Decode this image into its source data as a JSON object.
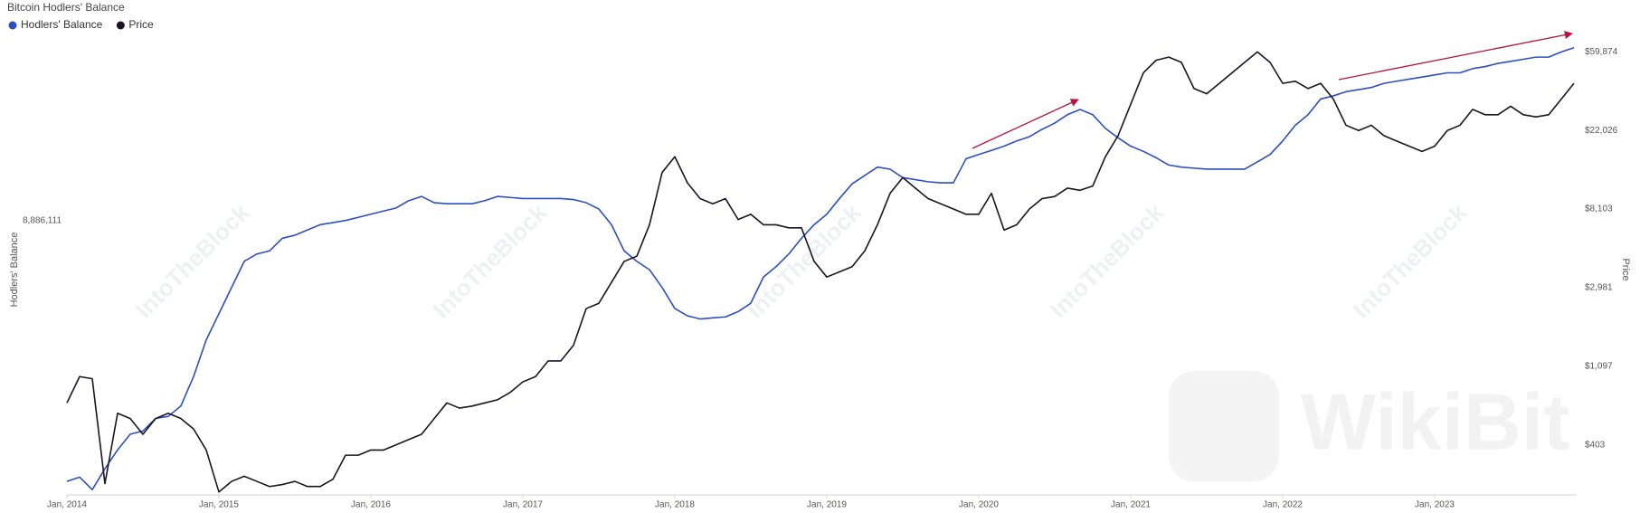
{
  "chart_data": {
    "type": "line",
    "title": "Bitcoin Hodlers' Balance",
    "y_label": "Hodlers' Balance",
    "y2_label": "Price",
    "watermarks": [
      "IntoTheBlock",
      "WikiBit"
    ],
    "x": [
      "2014-01",
      "2014-02",
      "2014-03",
      "2014-04",
      "2014-05",
      "2014-06",
      "2014-07",
      "2014-08",
      "2014-09",
      "2014-10",
      "2014-11",
      "2014-12",
      "2015-01",
      "2015-02",
      "2015-03",
      "2015-04",
      "2015-05",
      "2015-06",
      "2015-07",
      "2015-08",
      "2015-09",
      "2015-10",
      "2015-11",
      "2015-12",
      "2016-01",
      "2016-02",
      "2016-03",
      "2016-04",
      "2016-05",
      "2016-06",
      "2016-07",
      "2016-08",
      "2016-09",
      "2016-10",
      "2016-11",
      "2016-12",
      "2017-01",
      "2017-02",
      "2017-03",
      "2017-04",
      "2017-05",
      "2017-06",
      "2017-07",
      "2017-08",
      "2017-09",
      "2017-10",
      "2017-11",
      "2017-12",
      "2018-01",
      "2018-02",
      "2018-03",
      "2018-04",
      "2018-05",
      "2018-06",
      "2018-07",
      "2018-08",
      "2018-09",
      "2018-10",
      "2018-11",
      "2018-12",
      "2019-01",
      "2019-02",
      "2019-03",
      "2019-04",
      "2019-05",
      "2019-06",
      "2019-07",
      "2019-08",
      "2019-09",
      "2019-10",
      "2019-11",
      "2019-12",
      "2020-01",
      "2020-02",
      "2020-03",
      "2020-04",
      "2020-05",
      "2020-06",
      "2020-07",
      "2020-08",
      "2020-09",
      "2020-10",
      "2020-11",
      "2020-12",
      "2021-01",
      "2021-02",
      "2021-03",
      "2021-04",
      "2021-05",
      "2021-06",
      "2021-07",
      "2021-08",
      "2021-09",
      "2021-10",
      "2021-11",
      "2021-12",
      "2022-01",
      "2022-02",
      "2022-03",
      "2022-04",
      "2022-05",
      "2022-06",
      "2022-07",
      "2022-08",
      "2022-09",
      "2022-10",
      "2022-11",
      "2022-12",
      "2023-01",
      "2023-02",
      "2023-03",
      "2023-04",
      "2023-05",
      "2023-06",
      "2023-07",
      "2023-08",
      "2023-09",
      "2023-10",
      "2023-11",
      "2023-12"
    ],
    "xlim": [
      "2014-01",
      "2023-12"
    ],
    "xticks": [
      {
        "value": "2014-01",
        "label": "Jan, 2014"
      },
      {
        "value": "2015-01",
        "label": "Jan, 2015"
      },
      {
        "value": "2016-01",
        "label": "Jan, 2016"
      },
      {
        "value": "2017-01",
        "label": "Jan, 2017"
      },
      {
        "value": "2018-01",
        "label": "Jan, 2018"
      },
      {
        "value": "2019-01",
        "label": "Jan, 2019"
      },
      {
        "value": "2020-01",
        "label": "Jan, 2020"
      },
      {
        "value": "2021-01",
        "label": "Jan, 2021"
      },
      {
        "value": "2022-01",
        "label": "Jan, 2022"
      },
      {
        "value": "2023-01",
        "label": "Jan, 2023"
      }
    ],
    "ylim": [
      4000000,
      12170754
    ],
    "yticks": [
      {
        "value": 8886111,
        "label": "8,886,111"
      }
    ],
    "y2lim": [
      213,
      73130
    ],
    "y2_log": true,
    "y2ticks": [
      {
        "value": 403,
        "label": "$403"
      },
      {
        "value": 1097,
        "label": "$1,097"
      },
      {
        "value": 2981,
        "label": "$2,981"
      },
      {
        "value": 8103,
        "label": "$8,103"
      },
      {
        "value": 22026,
        "label": "$22,026"
      },
      {
        "value": 59874,
        "label": "$59,874"
      }
    ],
    "grid": false,
    "legend": "top-left",
    "series": [
      {
        "name": "Hodlers' Balance",
        "color": "#2d4fbf",
        "values": [
          4242000,
          4317000,
          4093000,
          4466000,
          4802000,
          5082000,
          5138000,
          5362000,
          5399000,
          5586000,
          6108000,
          6761000,
          7227000,
          7694000,
          8160000,
          8291000,
          8347000,
          8570000,
          8626000,
          8720000,
          8813000,
          8850000,
          8888000,
          8944000,
          9000000,
          9056000,
          9111000,
          9242000,
          9317000,
          9205000,
          9186000,
          9186000,
          9186000,
          9242000,
          9317000,
          9298000,
          9279000,
          9279000,
          9279000,
          9279000,
          9261000,
          9205000,
          9093000,
          8813000,
          8347000,
          8160000,
          8011000,
          7694000,
          7321000,
          7190000,
          7134000,
          7153000,
          7171000,
          7265000,
          7414000,
          7880000,
          8067000,
          8291000,
          8570000,
          8813000,
          9000000,
          9279000,
          9541000,
          9690000,
          9839000,
          9802000,
          9652000,
          9615000,
          9578000,
          9559000,
          9559000,
          9988000,
          10063000,
          10137000,
          10212000,
          10305000,
          10380000,
          10511000,
          10623000,
          10772000,
          10865000,
          10772000,
          10529000,
          10361000,
          10212000,
          10119000,
          10007000,
          9876000,
          9839000,
          9820000,
          9802000,
          9802000,
          9802000,
          9802000,
          9932000,
          10063000,
          10305000,
          10585000,
          10772000,
          11052000,
          11108000,
          11182000,
          11219000,
          11257000,
          11331000,
          11369000,
          11406000,
          11443000,
          11481000,
          11518000,
          11518000,
          11593000,
          11630000,
          11686000,
          11723000,
          11760000,
          11798000,
          11798000,
          11891000,
          11966000
        ]
      },
      {
        "name": "Price",
        "color": "#1a1423",
        "axis": "y2",
        "values": [
          687,
          960,
          934,
          246,
          602,
          563,
          461,
          563,
          602,
          563,
          493,
          377,
          221,
          253,
          270,
          253,
          237,
          243,
          253,
          237,
          237,
          260,
          353,
          353,
          377,
          377,
          403,
          431,
          461,
          563,
          687,
          643,
          660,
          687,
          715,
          785,
          898,
          960,
          1172,
          1172,
          1431,
          2282,
          2441,
          3187,
          4160,
          4447,
          6634,
          12915,
          15770,
          11300,
          9250,
          8660,
          9250,
          7090,
          7580,
          6634,
          6634,
          6380,
          6380,
          4160,
          3410,
          3640,
          3890,
          4760,
          6634,
          9900,
          12088,
          10570,
          9250,
          8660,
          8103,
          7580,
          7580,
          9900,
          6200,
          6634,
          8103,
          9250,
          9505,
          10570,
          10290,
          10860,
          15770,
          20600,
          30760,
          45880,
          53820,
          56020,
          52440,
          37560,
          35140,
          40130,
          45880,
          52440,
          59874,
          52440,
          40130,
          41210,
          37560,
          40130,
          32860,
          23540,
          22026,
          23540,
          20600,
          19260,
          18030,
          16860,
          18030,
          22026,
          23540,
          28800,
          26900,
          26900,
          29980,
          26900,
          26190,
          26900,
          32860,
          40130
        ]
      }
    ]
  }
}
